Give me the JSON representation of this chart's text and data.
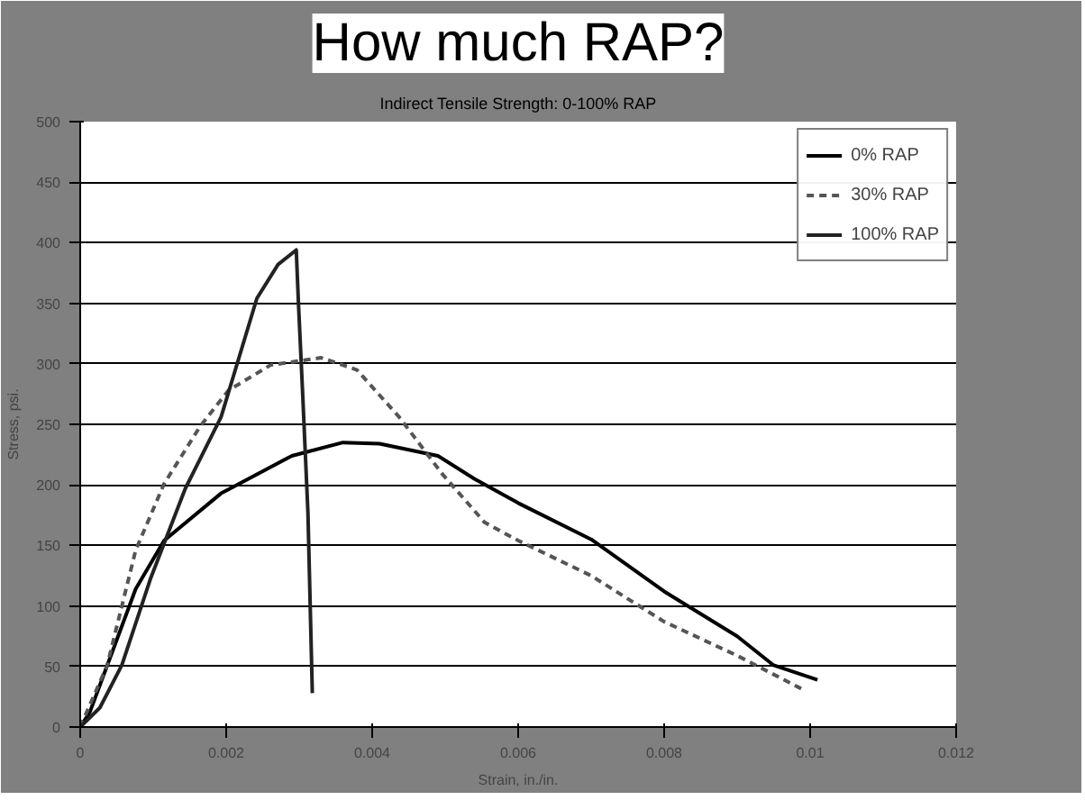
{
  "chart_data": {
    "type": "line",
    "title": "How much RAP?",
    "subtitle": "Indirect Tensile Strength: 0-100% RAP",
    "xlabel": "Strain, in./in.",
    "ylabel": "Stress, psi.",
    "xlim": [
      0,
      0.012
    ],
    "xticks": [
      0,
      0.002,
      0.004,
      0.006,
      0.008,
      0.01,
      0.012
    ],
    "ylim": [
      0,
      500
    ],
    "yticks": [
      0,
      50,
      100,
      150,
      200,
      250,
      300,
      350,
      400,
      450,
      500
    ],
    "grid": "y",
    "legend": "top right",
    "series": [
      {
        "name": "0% RAP",
        "color": "#000000",
        "line_style": "solid",
        "x": [
          0,
          0.00013,
          0.00047,
          0.00076,
          0.00115,
          0.00193,
          0.0029,
          0.0036,
          0.0041,
          0.0049,
          0.0054,
          0.006,
          0.007,
          0.008,
          0.009,
          0.0095,
          0.0101
        ],
        "values": [
          0,
          12,
          67,
          114,
          154,
          193,
          224,
          235,
          234,
          224,
          205,
          185,
          155,
          112,
          75,
          51,
          39
        ]
      },
      {
        "name": "30% RAP",
        "color": "#555555",
        "line_style": "dashed",
        "x": [
          0,
          0.00037,
          0.00076,
          0.00115,
          0.00164,
          0.00203,
          0.00261,
          0.0033,
          0.00379,
          0.00437,
          0.00496,
          0.00554,
          0.006,
          0.007,
          0.008,
          0.009,
          0.0099
        ],
        "values": [
          0,
          51,
          146,
          201,
          248,
          278,
          299,
          305,
          295,
          256,
          209,
          169,
          154,
          125,
          87,
          59,
          31
        ]
      },
      {
        "name": "100% RAP",
        "color": "#222222",
        "line_style": "solid",
        "x": [
          0,
          0.00027,
          0.00057,
          0.00096,
          0.00144,
          0.00193,
          0.00242,
          0.00271,
          0.00296,
          0.00299,
          0.00305,
          0.00312,
          0.00318
        ],
        "values": [
          0,
          16,
          51,
          122,
          197,
          256,
          354,
          382,
          394,
          350,
          272,
          177,
          28
        ]
      }
    ]
  }
}
